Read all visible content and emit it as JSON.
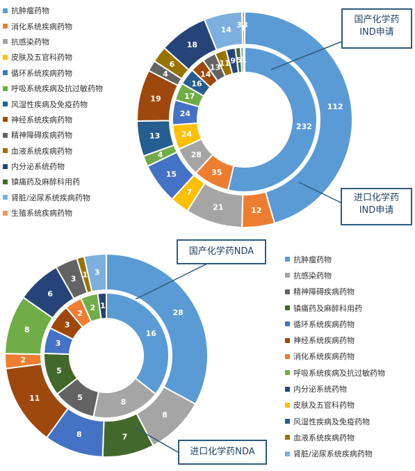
{
  "colors": {
    "抗肿瘤药物": "#5b9bd5",
    "消化系统疾病药物": "#ed7d31",
    "抗感染药物": "#a5a5a5",
    "皮肤及五官科药物": "#ffc000",
    "循环系统疾病药物": "#4472c4",
    "呼吸系统疾病及抗过敏药物": "#70ad47",
    "风湿性疾病及免疫药物": "#255e91",
    "神经系统疾病药物": "#9e480e",
    "精神障碍疾病药物": "#636363",
    "血液系统疾病药物": "#997300",
    "内分泌系统药物": "#264478",
    "镇痛药及麻醉科用药": "#43682b",
    "肾脏/泌尿系统疾病药物": "#7cafdd",
    "生殖系统疾病药物": "#f1975a"
  },
  "chart_data": [
    {
      "type": "donut",
      "legend": [
        "抗肿瘤药物",
        "消化系统疾病药物",
        "抗感染药物",
        "皮肤及五官科药物",
        "循环系统疾病药物",
        "呼吸系统疾病及抗过敏药物",
        "风湿性疾病及免疫药物",
        "神经系统疾病药物",
        "精神障碍疾病药物",
        "血液系统疾病药物",
        "内分泌系统药物",
        "镇痛药及麻醉科用药",
        "肾脏/泌尿系统疾病药物",
        "生殖系统疾病药物"
      ],
      "series": [
        {
          "name": "国产化学药IND申请",
          "categories": [
            "抗肿瘤药物",
            "消化系统疾病药物",
            "抗感染药物",
            "皮肤及五官科药物",
            "循环系统疾病药物",
            "呼吸系统疾病及抗过敏药物",
            "风湿性疾病及免疫药物",
            "神经系统疾病药物",
            "精神障碍疾病药物",
            "血液系统疾病药物",
            "内分泌系统药物",
            "镇痛药及麻醉科用药",
            "肾脏/泌尿系统疾病药物",
            "生殖系统疾病药物"
          ],
          "values": [
            232,
            35,
            28,
            24,
            24,
            17,
            16,
            14,
            13,
            11,
            9,
            5,
            3,
            1
          ]
        },
        {
          "name": "进口化学药IND申请",
          "categories": [
            "抗肿瘤药物",
            "消化系统疾病药物",
            "抗感染药物",
            "皮肤及五官科药物",
            "循环系统疾病药物",
            "呼吸系统疾病及抗过敏药物",
            "风湿性疾病及免疫药物",
            "神经系统疾病药物",
            "精神障碍疾病药物",
            "血液系统疾病药物",
            "内分泌系统药物",
            "镇痛药及麻醉科用药",
            "肾脏/泌尿系统疾病药物",
            "生殖系统疾病药物"
          ],
          "values": [
            112,
            12,
            21,
            7,
            15,
            4,
            13,
            19,
            4,
            6,
            18,
            0,
            14,
            1
          ],
          "labels": [
            "112",
            "12",
            "21",
            "7",
            "15",
            "4",
            "13",
            "19",
            "4",
            "6",
            "18",
            "",
            "14",
            "1"
          ],
          "extra_labels": [
            "3",
            "3"
          ]
        }
      ]
    },
    {
      "type": "donut",
      "legend": [
        "抗肿瘤药物",
        "抗感染药物",
        "精神障碍疾病药物",
        "镇痛药及麻醉科用药",
        "循环系统疾病药物",
        "神经系统疾病药物",
        "消化系统疾病药物",
        "呼吸系统疾病及抗过敏药物",
        "内分泌系统药物",
        "皮肤及五官科药物",
        "风湿性疾病及免疫药物",
        "血液系统疾病药物",
        "肾脏/泌尿系统疾病药物"
      ],
      "series": [
        {
          "name": "国产化学药NDA",
          "categories": [
            "抗肿瘤药物",
            "抗感染药物",
            "精神障碍疾病药物",
            "镇痛药及麻醉科用药",
            "循环系统疾病药物",
            "神经系统疾病药物",
            "消化系统疾病药物",
            "呼吸系统疾病及抗过敏药物",
            "内分泌系统药物"
          ],
          "values": [
            16,
            8,
            5,
            5,
            3,
            3,
            2,
            2,
            1
          ]
        },
        {
          "name": "进口化学药NDA",
          "categories": [
            "抗肿瘤药物",
            "抗感染药物",
            "镇痛药及麻醉科用药",
            "循环系统疾病药物",
            "神经系统疾病药物",
            "消化系统疾病药物",
            "呼吸系统疾病及抗过敏药物",
            "内分泌系统药物",
            "精神障碍疾病药物",
            "血液系统疾病药物",
            "肾脏/泌尿系统疾病药物"
          ],
          "values": [
            28,
            8,
            7,
            8,
            11,
            2,
            8,
            6,
            3,
            1,
            3
          ],
          "labels": [
            "28",
            "8",
            "7",
            "8",
            "11",
            "2",
            "8",
            "6",
            "3",
            "1",
            "3"
          ]
        }
      ]
    }
  ]
}
